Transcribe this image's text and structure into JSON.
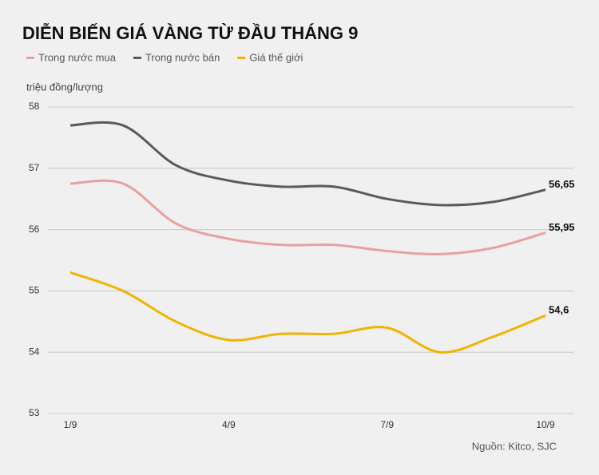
{
  "chart_data": {
    "type": "line",
    "title": "DIỄN BIẾN GIÁ VÀNG TỪ ĐẦU THÁNG 9",
    "y_label": "triệu đồng/lượng",
    "source": "Nguồn: Kitco, SJC",
    "categories": [
      "1/9",
      null,
      null,
      "4/9",
      null,
      null,
      "7/9",
      null,
      null,
      "10/9"
    ],
    "series": [
      {
        "name": "Trong nước mua",
        "color": "#e8a0a0",
        "values": [
          56.75,
          56.75,
          56.1,
          55.85,
          55.75,
          55.75,
          55.65,
          55.6,
          55.7,
          55.95
        ],
        "value_labels": [
          null,
          null,
          null,
          null,
          null,
          null,
          null,
          null,
          null,
          "55,95"
        ]
      },
      {
        "name": "Trong nước bán",
        "color": "#5a5a5a",
        "values": [
          57.7,
          57.7,
          57.05,
          56.8,
          56.7,
          56.7,
          56.5,
          56.4,
          56.45,
          56.65
        ],
        "value_labels": [
          null,
          null,
          null,
          null,
          null,
          null,
          null,
          null,
          null,
          "56,65"
        ]
      },
      {
        "name": "Giá thế giới",
        "color": "#f0b400",
        "values": [
          55.3,
          55.0,
          54.5,
          54.2,
          54.3,
          54.3,
          54.4,
          54.0,
          54.25,
          54.6
        ],
        "value_labels": [
          null,
          null,
          null,
          null,
          null,
          null,
          null,
          null,
          null,
          "54,6"
        ]
      }
    ],
    "ylim": [
      53,
      58
    ],
    "yticks": [
      53,
      54,
      55,
      56,
      57,
      58
    ],
    "grid": true
  }
}
